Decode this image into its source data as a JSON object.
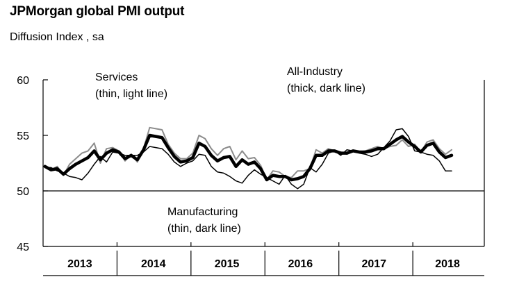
{
  "title": "JPMorgan global PMI output",
  "subtitle": "Diffusion Index , sa",
  "chart_data": {
    "type": "line",
    "title": "JPMorgan global PMI output",
    "subtitle": "Diffusion Index , sa",
    "xlabel": "",
    "ylabel": "",
    "ylim": [
      45,
      60
    ],
    "yticks": [
      45,
      50,
      55,
      60
    ],
    "ytick_labels": [
      "45",
      "50",
      "55",
      "60"
    ],
    "x_start": "2013-01",
    "x_end": "2018-07",
    "year_labels": [
      "2013",
      "2014",
      "2015",
      "2016",
      "2017",
      "2018"
    ],
    "reference_line": 50,
    "grid": false,
    "annotations": [
      {
        "line1": "Services",
        "line2": "(thin, light line)"
      },
      {
        "line1": "All-Industry",
        "line2": "(thick, dark line)"
      },
      {
        "line1": "Manufacturing",
        "line2": "(thin, dark line)"
      }
    ],
    "months": [
      "2013-01",
      "2013-02",
      "2013-03",
      "2013-04",
      "2013-05",
      "2013-06",
      "2013-07",
      "2013-08",
      "2013-09",
      "2013-10",
      "2013-11",
      "2013-12",
      "2014-01",
      "2014-02",
      "2014-03",
      "2014-04",
      "2014-05",
      "2014-06",
      "2014-07",
      "2014-08",
      "2014-09",
      "2014-10",
      "2014-11",
      "2014-12",
      "2015-01",
      "2015-02",
      "2015-03",
      "2015-04",
      "2015-05",
      "2015-06",
      "2015-07",
      "2015-08",
      "2015-09",
      "2015-10",
      "2015-11",
      "2015-12",
      "2016-01",
      "2016-02",
      "2016-03",
      "2016-04",
      "2016-05",
      "2016-06",
      "2016-07",
      "2016-08",
      "2016-09",
      "2016-10",
      "2016-11",
      "2016-12",
      "2017-01",
      "2017-02",
      "2017-03",
      "2017-04",
      "2017-05",
      "2017-06",
      "2017-07",
      "2017-08",
      "2017-09",
      "2017-10",
      "2017-11",
      "2017-12",
      "2018-01",
      "2018-02",
      "2018-03",
      "2018-04",
      "2018-05",
      "2018-06",
      "2018-07"
    ],
    "series": [
      {
        "name": "Services",
        "color": "#8c8c8c",
        "width": 2,
        "values": [
          52.3,
          51.9,
          52.2,
          51.4,
          52.4,
          52.9,
          53.4,
          53.6,
          54.3,
          52.5,
          53.8,
          53.9,
          53.6,
          52.7,
          53.3,
          52.6,
          53.8,
          55.7,
          55.6,
          55.5,
          54.2,
          53.4,
          52.9,
          52.9,
          53.4,
          55.0,
          54.7,
          53.8,
          53.2,
          53.8,
          54.0,
          52.8,
          53.6,
          52.9,
          53.0,
          52.3,
          51.0,
          51.8,
          51.7,
          51.3,
          51.2,
          51.8,
          51.8,
          52.0,
          53.7,
          53.4,
          53.8,
          53.6,
          53.5,
          53.3,
          53.6,
          53.5,
          53.6,
          53.8,
          54.0,
          53.8,
          54.0,
          54.1,
          54.6,
          54.0,
          54.2,
          53.5,
          54.4,
          54.6,
          53.8,
          53.3,
          53.7
        ]
      },
      {
        "name": "Manufacturing",
        "color": "#000000",
        "width": 1.5,
        "values": [
          52.1,
          52.1,
          51.8,
          51.6,
          51.3,
          51.2,
          51.0,
          51.6,
          52.4,
          53.1,
          52.6,
          53.5,
          53.4,
          53.2,
          53.2,
          53.2,
          53.5,
          54.0,
          53.9,
          53.8,
          53.3,
          52.6,
          52.2,
          52.5,
          52.7,
          53.3,
          53.2,
          52.2,
          51.7,
          51.6,
          51.3,
          50.9,
          50.7,
          51.4,
          51.9,
          51.5,
          51.2,
          50.9,
          50.6,
          51.4,
          50.6,
          50.2,
          50.6,
          52.1,
          51.7,
          52.4,
          53.4,
          53.6,
          53.2,
          53.7,
          53.6,
          53.4,
          53.3,
          53.1,
          53.3,
          53.9,
          54.5,
          55.5,
          55.6,
          54.9,
          53.6,
          53.5,
          53.3,
          53.2,
          52.7,
          51.8,
          51.8
        ]
      },
      {
        "name": "All-Industry",
        "color": "#000000",
        "width": 4.5,
        "values": [
          52.2,
          51.9,
          52.0,
          51.5,
          52.0,
          52.4,
          52.7,
          53.0,
          53.6,
          52.8,
          53.4,
          53.7,
          53.5,
          52.9,
          53.2,
          52.8,
          53.7,
          55.0,
          54.9,
          54.8,
          53.9,
          53.1,
          52.6,
          52.7,
          53.0,
          54.3,
          54.0,
          53.2,
          52.7,
          53.0,
          53.1,
          52.2,
          52.8,
          52.4,
          52.6,
          52.0,
          51.0,
          51.4,
          51.3,
          51.3,
          51.0,
          51.1,
          51.3,
          52.0,
          53.2,
          53.2,
          53.6,
          53.6,
          53.4,
          53.4,
          53.6,
          53.5,
          53.5,
          53.6,
          53.8,
          53.8,
          54.2,
          54.6,
          54.9,
          54.4,
          54.0,
          53.5,
          54.1,
          54.3,
          53.5,
          53.0,
          53.2
        ]
      }
    ]
  }
}
